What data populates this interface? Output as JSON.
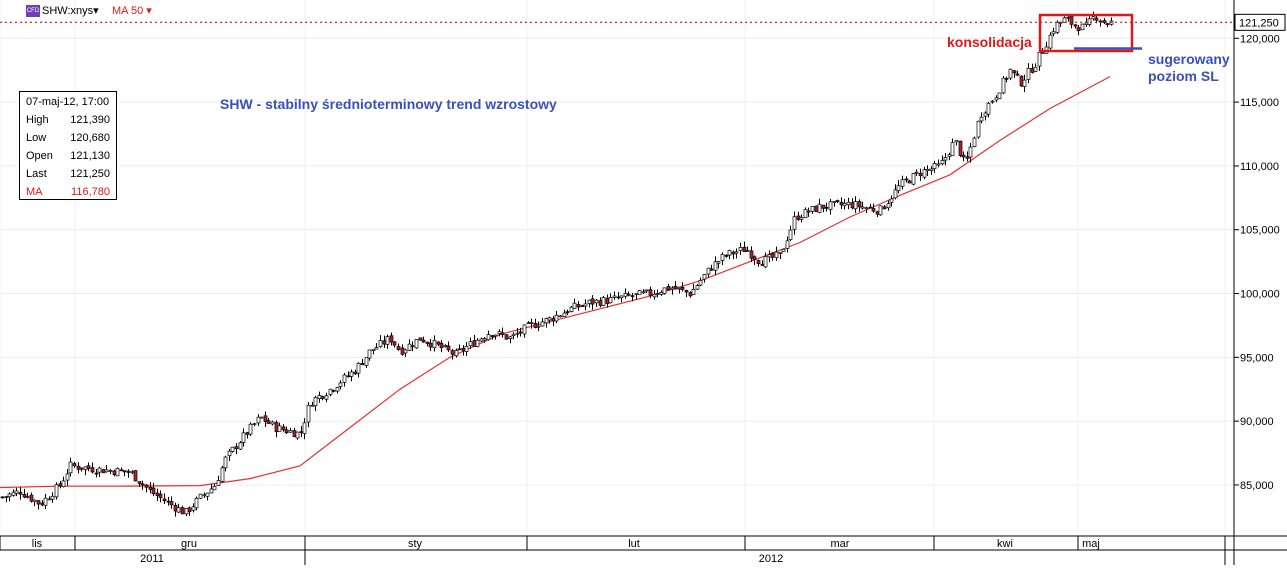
{
  "header": {
    "symbol": "SHW:xnys▾",
    "indicator": "MA 50 ▾",
    "icon": "cfd-icon",
    "icon_text": "CFD"
  },
  "colors": {
    "candle_up": "#ffffff",
    "candle_down": "#b22222",
    "ma": "#e83030",
    "annotation_red": "#e01818",
    "annotation_blue": "#3a4fbf",
    "last_price_line": "#d01010"
  },
  "info_box": {
    "date": "07-maj-12, 17:00",
    "rows": [
      {
        "label": "High",
        "value": "121,390"
      },
      {
        "label": "Low",
        "value": "120,680"
      },
      {
        "label": "Open",
        "value": "121,130"
      },
      {
        "label": "Last",
        "value": "121,250"
      },
      {
        "label": "MA",
        "value": "116,780"
      }
    ]
  },
  "chart_data": {
    "type": "candlestick",
    "title": "SHW - stabilny średnioterminowy trend wzrostowy",
    "ylim": [
      81000,
      123000
    ],
    "y_ticks": [
      {
        "value": 85000,
        "label": "85,000"
      },
      {
        "value": 90000,
        "label": "90,000"
      },
      {
        "value": 95000,
        "label": "95,000"
      },
      {
        "value": 100000,
        "label": "100,000"
      },
      {
        "value": 105000,
        "label": "105,000"
      },
      {
        "value": 110000,
        "label": "110,000"
      },
      {
        "value": 115000,
        "label": "115,000"
      },
      {
        "value": 120000,
        "label": "120,000"
      }
    ],
    "last_price": {
      "value": 121250,
      "label": "121,250"
    },
    "month_labels": [
      "lis",
      "gru",
      "sty",
      "lut",
      "mar",
      "kwi",
      "maj"
    ],
    "year_labels": [
      "2011",
      "2012"
    ],
    "annotations": {
      "consolidation": "konsolidacja",
      "stop_loss_line1": "sugerowany",
      "stop_loss_line2": "poziom SL",
      "stop_loss_level": 119200
    },
    "series": [
      {
        "name": "MA 50",
        "points": [
          [
            0,
            84800
          ],
          [
            60,
            84900
          ],
          [
            120,
            84900
          ],
          [
            200,
            84950
          ],
          [
            250,
            85500
          ],
          [
            300,
            86500
          ],
          [
            350,
            89500
          ],
          [
            400,
            92500
          ],
          [
            450,
            95000
          ],
          [
            500,
            96800
          ],
          [
            550,
            97800
          ],
          [
            600,
            98800
          ],
          [
            650,
            99800
          ],
          [
            700,
            101000
          ],
          [
            750,
            102500
          ],
          [
            800,
            104000
          ],
          [
            850,
            106000
          ],
          [
            900,
            107700
          ],
          [
            950,
            109300
          ],
          [
            1000,
            112000
          ],
          [
            1050,
            114500
          ],
          [
            1110,
            117000
          ]
        ]
      }
    ],
    "price_path": [
      [
        0,
        84000
      ],
      [
        20,
        84500
      ],
      [
        40,
        83500
      ],
      [
        60,
        85000
      ],
      [
        70,
        86500
      ],
      [
        100,
        86200
      ],
      [
        130,
        86000
      ],
      [
        150,
        84500
      ],
      [
        170,
        83500
      ],
      [
        185,
        82800
      ],
      [
        200,
        84000
      ],
      [
        215,
        85000
      ],
      [
        225,
        87000
      ],
      [
        240,
        88500
      ],
      [
        260,
        90300
      ],
      [
        275,
        89500
      ],
      [
        300,
        89000
      ],
      [
        310,
        91500
      ],
      [
        330,
        92500
      ],
      [
        355,
        94000
      ],
      [
        370,
        95500
      ],
      [
        390,
        96500
      ],
      [
        400,
        95500
      ],
      [
        420,
        96500
      ],
      [
        440,
        95800
      ],
      [
        455,
        95200
      ],
      [
        470,
        96000
      ],
      [
        490,
        97000
      ],
      [
        510,
        96500
      ],
      [
        530,
        97500
      ],
      [
        550,
        98000
      ],
      [
        570,
        98800
      ],
      [
        590,
        99300
      ],
      [
        610,
        99500
      ],
      [
        630,
        99800
      ],
      [
        650,
        100000
      ],
      [
        670,
        100500
      ],
      [
        690,
        100000
      ],
      [
        710,
        102000
      ],
      [
        725,
        103000
      ],
      [
        745,
        103500
      ],
      [
        760,
        102500
      ],
      [
        780,
        103000
      ],
      [
        795,
        106000
      ],
      [
        820,
        106800
      ],
      [
        850,
        107000
      ],
      [
        880,
        106500
      ],
      [
        900,
        108500
      ],
      [
        920,
        109500
      ],
      [
        940,
        110000
      ],
      [
        955,
        112000
      ],
      [
        965,
        110000
      ],
      [
        980,
        114000
      ],
      [
        995,
        115500
      ],
      [
        1010,
        117500
      ],
      [
        1020,
        116500
      ],
      [
        1035,
        118000
      ],
      [
        1045,
        119500
      ],
      [
        1055,
        121000
      ],
      [
        1065,
        121500
      ],
      [
        1075,
        121000
      ],
      [
        1085,
        120800
      ],
      [
        1095,
        121800
      ],
      [
        1105,
        121200
      ],
      [
        1112,
        121250
      ]
    ]
  }
}
